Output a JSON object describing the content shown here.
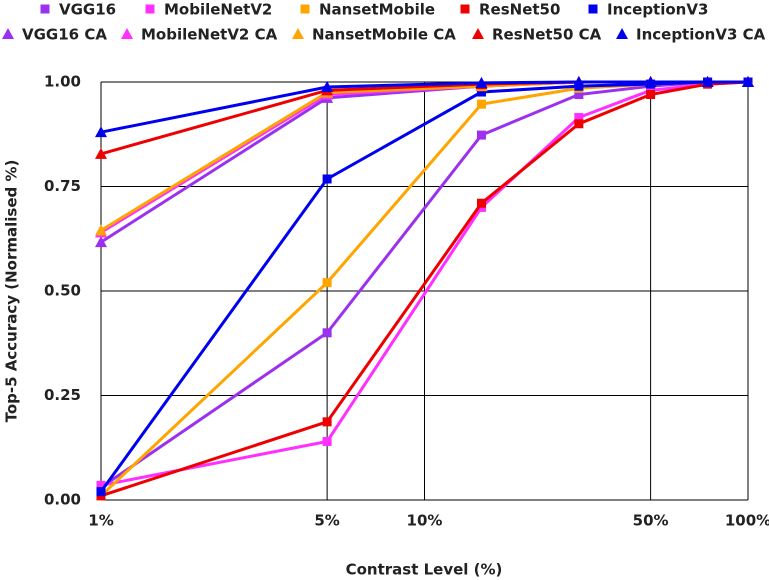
{
  "chart_data": {
    "type": "line",
    "x_label": "Contrast Level (%)",
    "y_label": "Top-5 Accuracy  (Normalised %)",
    "x": [
      1,
      5,
      15,
      30,
      50,
      75,
      100
    ],
    "log_x": true,
    "grid": true,
    "xlim": [
      1,
      100
    ],
    "xticks": [
      {
        "value": 1,
        "label": "1%"
      },
      {
        "value": 5,
        "label": "5%"
      },
      {
        "value": 10,
        "label": "10%"
      },
      {
        "value": 50,
        "label": "50%"
      },
      {
        "value": 100,
        "label": "100%"
      }
    ],
    "ylim": [
      0,
      1
    ],
    "yticks": [
      {
        "value": 0,
        "label": "0.00"
      },
      {
        "value": 0.25,
        "label": "0.25"
      },
      {
        "value": 0.5,
        "label": "0.50"
      },
      {
        "value": 0.75,
        "label": "0.75"
      },
      {
        "value": 1,
        "label": "1.00"
      }
    ],
    "legend_position": "top",
    "series": [
      {
        "name": "VGG16",
        "color": "#9b30ee",
        "marker": "square",
        "values": [
          0.03,
          0.4,
          0.873,
          0.97,
          0.99,
          1.0,
          1.0
        ]
      },
      {
        "name": "MobileNetV2",
        "color": "#ff30ff",
        "marker": "square",
        "values": [
          0.035,
          0.14,
          0.7,
          0.915,
          0.98,
          0.995,
          1.0
        ]
      },
      {
        "name": "NansetMobile",
        "color": "#ffa500",
        "marker": "square",
        "values": [
          0.01,
          0.52,
          0.947,
          0.985,
          0.995,
          1.0,
          1.0
        ]
      },
      {
        "name": "ResNet50",
        "color": "#ee0000",
        "marker": "square",
        "values": [
          0.01,
          0.187,
          0.71,
          0.9,
          0.97,
          0.995,
          1.0
        ]
      },
      {
        "name": "InceptionV3",
        "color": "#0000ee",
        "marker": "square",
        "values": [
          0.02,
          0.768,
          0.976,
          0.99,
          0.995,
          1.0,
          1.0
        ]
      },
      {
        "name": "VGG16 CA",
        "color": "#9b30ee",
        "marker": "triangle",
        "values": [
          0.617,
          0.962,
          0.99,
          1.0,
          1.0,
          1.0,
          1.0
        ]
      },
      {
        "name": "MobileNetV2 CA",
        "color": "#ff30ff",
        "marker": "triangle",
        "values": [
          0.64,
          0.97,
          0.99,
          1.0,
          1.0,
          1.0,
          1.0
        ]
      },
      {
        "name": "NansetMobile CA",
        "color": "#ffa500",
        "marker": "triangle",
        "values": [
          0.645,
          0.975,
          0.99,
          1.0,
          1.0,
          1.0,
          1.0
        ]
      },
      {
        "name": "ResNet50 CA",
        "color": "#ee0000",
        "marker": "triangle",
        "values": [
          0.828,
          0.98,
          0.995,
          1.0,
          1.0,
          1.0,
          1.0
        ]
      },
      {
        "name": "InceptionV3 CA",
        "color": "#0000ee",
        "marker": "triangle",
        "values": [
          0.88,
          0.988,
          0.998,
          1.0,
          1.0,
          1.0,
          1.0
        ]
      }
    ]
  }
}
